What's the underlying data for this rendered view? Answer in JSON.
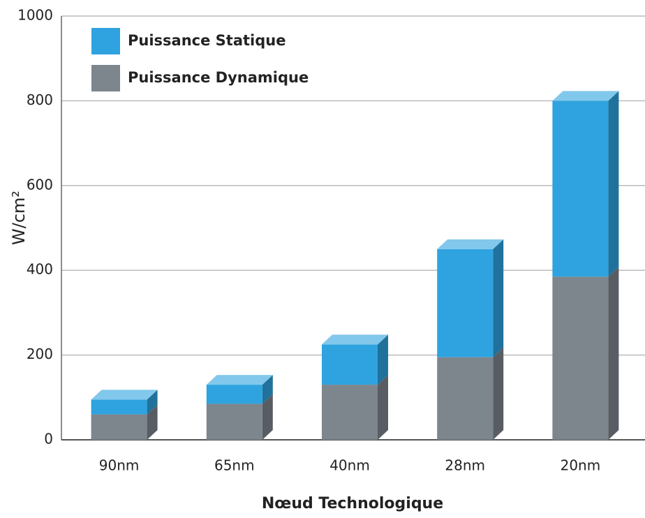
{
  "chart_data": {
    "type": "bar",
    "stacked": true,
    "x_label": "Nœud Technologique",
    "y_label": "W/cm²",
    "categories": [
      "90nm",
      "65nm",
      "40nm",
      "28nm",
      "20nm"
    ],
    "series": [
      {
        "name": "Puissance Dynamique",
        "color": "#7d858d",
        "values": [
          60,
          85,
          130,
          195,
          385
        ]
      },
      {
        "name": "Puissance Statique",
        "color": "#2ea3df",
        "values": [
          35,
          45,
          95,
          255,
          415
        ]
      }
    ],
    "ylim": [
      0,
      1000
    ],
    "yticks": [
      0,
      200,
      400,
      600,
      800,
      1000
    ],
    "grid": true,
    "legend": "top-left"
  }
}
